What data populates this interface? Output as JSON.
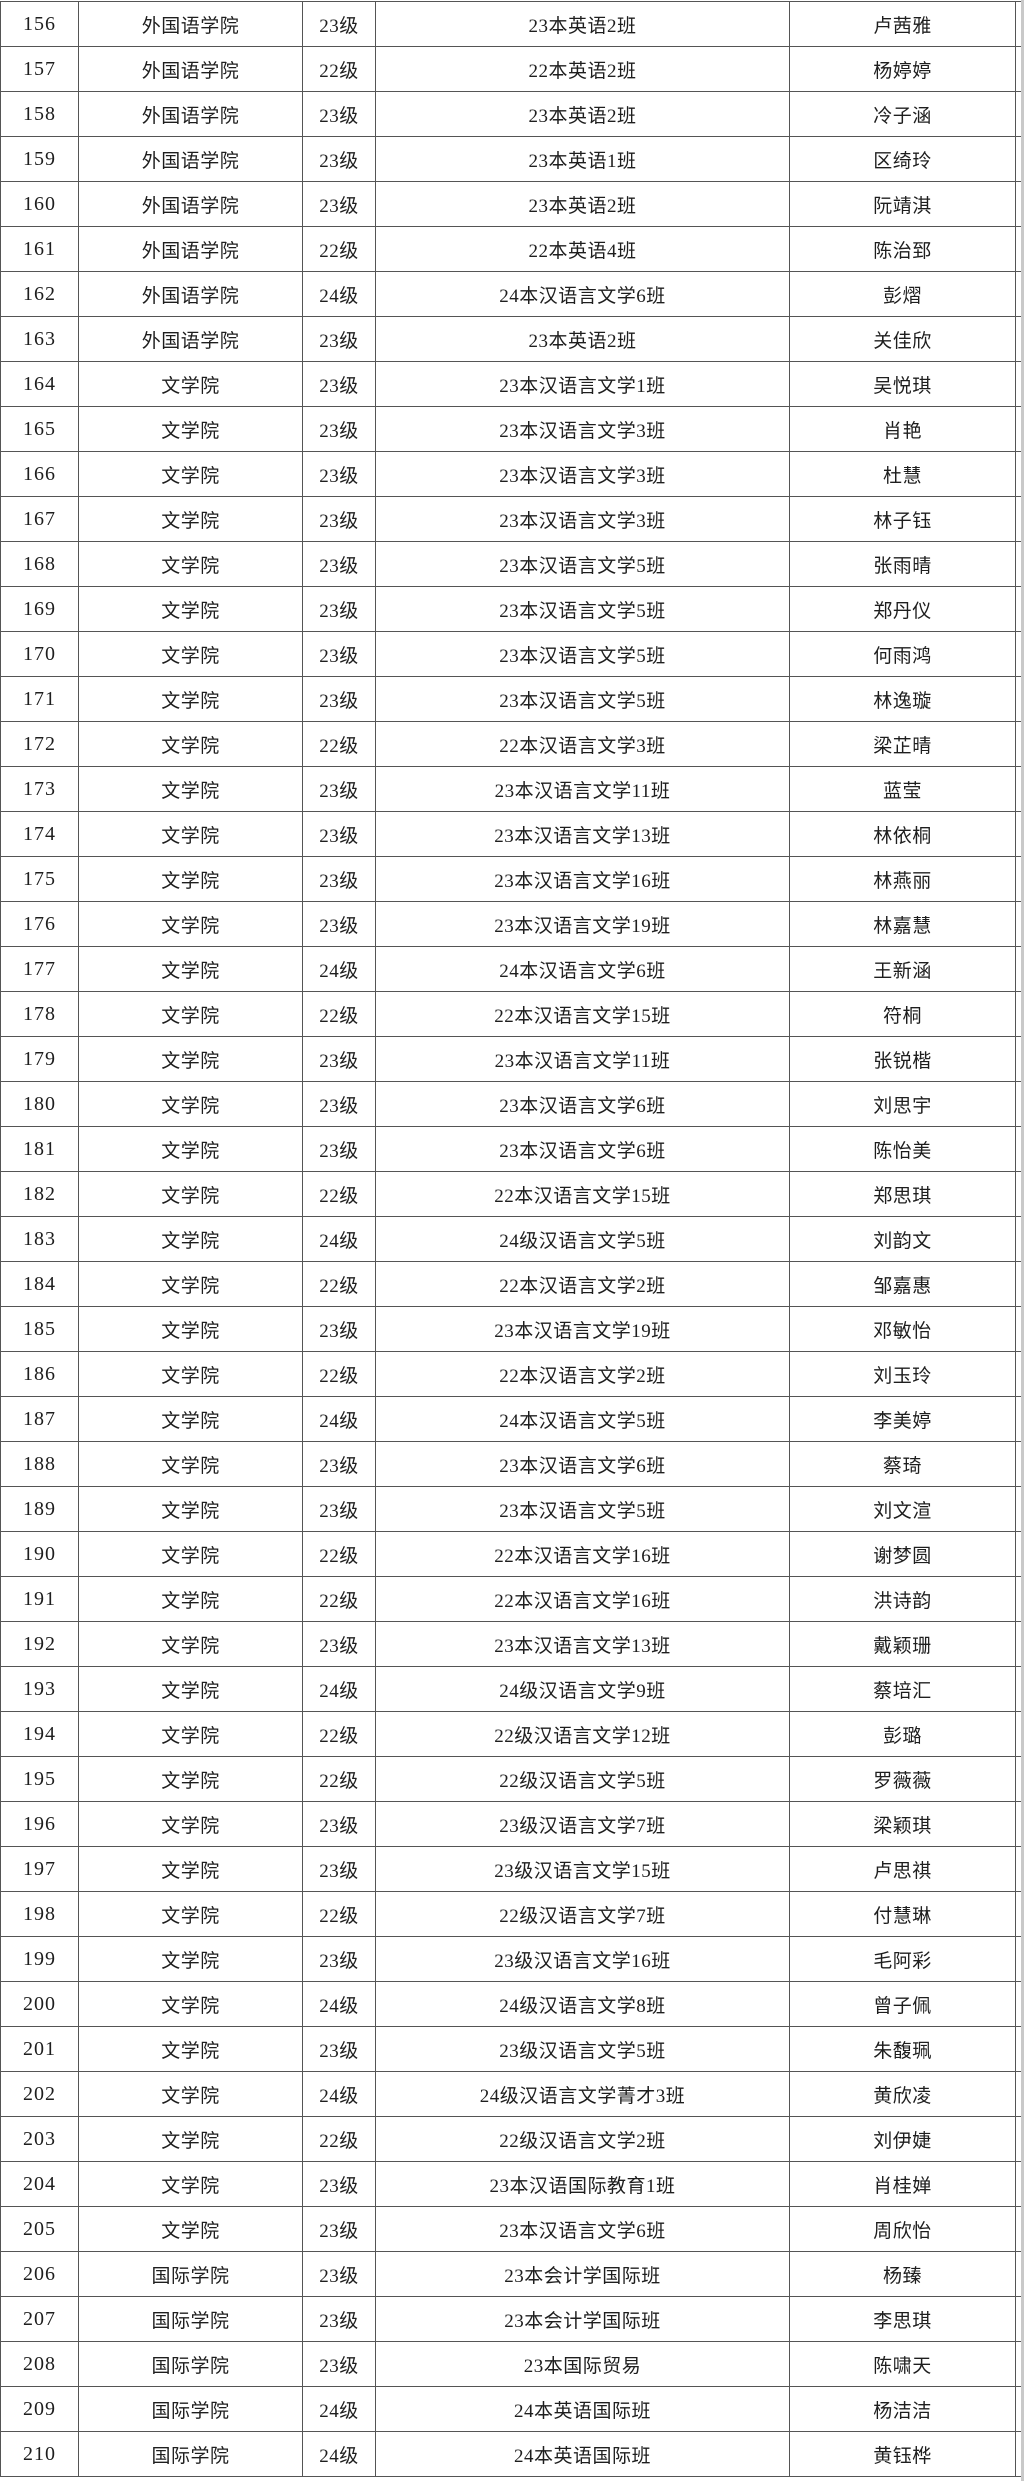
{
  "table": {
    "rows": [
      {
        "no": "156",
        "college": "外国语学院",
        "grade": "23级",
        "class": "23本英语2班",
        "name": "卢茜雅"
      },
      {
        "no": "157",
        "college": "外国语学院",
        "grade": "22级",
        "class": "22本英语2班",
        "name": "杨婷婷"
      },
      {
        "no": "158",
        "college": "外国语学院",
        "grade": "23级",
        "class": "23本英语2班",
        "name": "冷子涵"
      },
      {
        "no": "159",
        "college": "外国语学院",
        "grade": "23级",
        "class": "23本英语1班",
        "name": "区绮玲"
      },
      {
        "no": "160",
        "college": "外国语学院",
        "grade": "23级",
        "class": "23本英语2班",
        "name": "阮靖淇"
      },
      {
        "no": "161",
        "college": "外国语学院",
        "grade": "22级",
        "class": "22本英语4班",
        "name": "陈治郅"
      },
      {
        "no": "162",
        "college": "外国语学院",
        "grade": "24级",
        "class": "24本汉语言文学6班",
        "name": "彭熠"
      },
      {
        "no": "163",
        "college": "外国语学院",
        "grade": "23级",
        "class": "23本英语2班",
        "name": "关佳欣"
      },
      {
        "no": "164",
        "college": "文学院",
        "grade": "23级",
        "class": "23本汉语言文学1班",
        "name": "吴悦琪"
      },
      {
        "no": "165",
        "college": "文学院",
        "grade": "23级",
        "class": "23本汉语言文学3班",
        "name": "肖艳"
      },
      {
        "no": "166",
        "college": "文学院",
        "grade": "23级",
        "class": "23本汉语言文学3班",
        "name": "杜慧"
      },
      {
        "no": "167",
        "college": "文学院",
        "grade": "23级",
        "class": "23本汉语言文学3班",
        "name": "林子钰"
      },
      {
        "no": "168",
        "college": "文学院",
        "grade": "23级",
        "class": "23本汉语言文学5班",
        "name": "张雨晴"
      },
      {
        "no": "169",
        "college": "文学院",
        "grade": "23级",
        "class": "23本汉语言文学5班",
        "name": "郑丹仪"
      },
      {
        "no": "170",
        "college": "文学院",
        "grade": "23级",
        "class": "23本汉语言文学5班",
        "name": "何雨鸿"
      },
      {
        "no": "171",
        "college": "文学院",
        "grade": "23级",
        "class": "23本汉语言文学5班",
        "name": "林逸璇"
      },
      {
        "no": "172",
        "college": "文学院",
        "grade": "22级",
        "class": "22本汉语言文学3班",
        "name": "梁芷晴"
      },
      {
        "no": "173",
        "college": "文学院",
        "grade": "23级",
        "class": "23本汉语言文学11班",
        "name": "蓝莹"
      },
      {
        "no": "174",
        "college": "文学院",
        "grade": "23级",
        "class": "23本汉语言文学13班",
        "name": "林依桐"
      },
      {
        "no": "175",
        "college": "文学院",
        "grade": "23级",
        "class": "23本汉语言文学16班",
        "name": "林燕丽"
      },
      {
        "no": "176",
        "college": "文学院",
        "grade": "23级",
        "class": "23本汉语言文学19班",
        "name": "林嘉慧"
      },
      {
        "no": "177",
        "college": "文学院",
        "grade": "24级",
        "class": "24本汉语言文学6班",
        "name": "王新涵"
      },
      {
        "no": "178",
        "college": "文学院",
        "grade": "22级",
        "class": "22本汉语言文学15班",
        "name": "符桐"
      },
      {
        "no": "179",
        "college": "文学院",
        "grade": "23级",
        "class": "23本汉语言文学11班",
        "name": "张锐楷"
      },
      {
        "no": "180",
        "college": "文学院",
        "grade": "23级",
        "class": "23本汉语言文学6班",
        "name": "刘思宇"
      },
      {
        "no": "181",
        "college": "文学院",
        "grade": "23级",
        "class": "23本汉语言文学6班",
        "name": "陈怡美"
      },
      {
        "no": "182",
        "college": "文学院",
        "grade": "22级",
        "class": "22本汉语言文学15班",
        "name": "郑思琪"
      },
      {
        "no": "183",
        "college": "文学院",
        "grade": "24级",
        "class": "24级汉语言文学5班",
        "name": "刘韵文"
      },
      {
        "no": "184",
        "college": "文学院",
        "grade": "22级",
        "class": "22本汉语言文学2班",
        "name": "邹嘉惠"
      },
      {
        "no": "185",
        "college": "文学院",
        "grade": "23级",
        "class": "23本汉语言文学19班",
        "name": "邓敏怡"
      },
      {
        "no": "186",
        "college": "文学院",
        "grade": "22级",
        "class": "22本汉语言文学2班",
        "name": "刘玉玲"
      },
      {
        "no": "187",
        "college": "文学院",
        "grade": "24级",
        "class": "24本汉语言文学5班",
        "name": "李美婷"
      },
      {
        "no": "188",
        "college": "文学院",
        "grade": "23级",
        "class": "23本汉语言文学6班",
        "name": "蔡琦"
      },
      {
        "no": "189",
        "college": "文学院",
        "grade": "23级",
        "class": "23本汉语言文学5班",
        "name": "刘文渲"
      },
      {
        "no": "190",
        "college": "文学院",
        "grade": "22级",
        "class": "22本汉语言文学16班",
        "name": "谢梦圆"
      },
      {
        "no": "191",
        "college": "文学院",
        "grade": "22级",
        "class": "22本汉语言文学16班",
        "name": "洪诗韵"
      },
      {
        "no": "192",
        "college": "文学院",
        "grade": "23级",
        "class": "23本汉语言文学13班",
        "name": "戴颖珊"
      },
      {
        "no": "193",
        "college": "文学院",
        "grade": "24级",
        "class": "24级汉语言文学9班",
        "name": "蔡培汇"
      },
      {
        "no": "194",
        "college": "文学院",
        "grade": "22级",
        "class": "22级汉语言文学12班",
        "name": "彭璐"
      },
      {
        "no": "195",
        "college": "文学院",
        "grade": "22级",
        "class": "22级汉语言文学5班",
        "name": "罗薇薇"
      },
      {
        "no": "196",
        "college": "文学院",
        "grade": "23级",
        "class": "23级汉语言文学7班",
        "name": "梁颖琪"
      },
      {
        "no": "197",
        "college": "文学院",
        "grade": "23级",
        "class": "23级汉语言文学15班",
        "name": "卢思祺"
      },
      {
        "no": "198",
        "college": "文学院",
        "grade": "22级",
        "class": "22级汉语言文学7班",
        "name": "付慧琳"
      },
      {
        "no": "199",
        "college": "文学院",
        "grade": "23级",
        "class": "23级汉语言文学16班",
        "name": "毛阿彩"
      },
      {
        "no": "200",
        "college": "文学院",
        "grade": "24级",
        "class": "24级汉语言文学8班",
        "name": "曾子佩"
      },
      {
        "no": "201",
        "college": "文学院",
        "grade": "23级",
        "class": "23级汉语言文学5班",
        "name": "朱馥珮"
      },
      {
        "no": "202",
        "college": "文学院",
        "grade": "24级",
        "class": "24级汉语言文学菁才3班",
        "name": "黄欣凌"
      },
      {
        "no": "203",
        "college": "文学院",
        "grade": "22级",
        "class": "22级汉语言文学2班",
        "name": "刘伊婕"
      },
      {
        "no": "204",
        "college": "文学院",
        "grade": "23级",
        "class": "23本汉语国际教育1班",
        "name": "肖桂婵"
      },
      {
        "no": "205",
        "college": "文学院",
        "grade": "23级",
        "class": "23本汉语言文学6班",
        "name": "周欣怡"
      },
      {
        "no": "206",
        "college": "国际学院",
        "grade": "23级",
        "class": "23本会计学国际班",
        "name": "杨臻"
      },
      {
        "no": "207",
        "college": "国际学院",
        "grade": "23级",
        "class": "23本会计学国际班",
        "name": "李思琪"
      },
      {
        "no": "208",
        "college": "国际学院",
        "grade": "23级",
        "class": "23本国际贸易",
        "name": "陈啸天"
      },
      {
        "no": "209",
        "college": "国际学院",
        "grade": "24级",
        "class": "24本英语国际班",
        "name": "杨洁洁"
      },
      {
        "no": "210",
        "college": "国际学院",
        "grade": "24级",
        "class": "24本英语国际班",
        "name": "黄钰桦"
      }
    ]
  }
}
